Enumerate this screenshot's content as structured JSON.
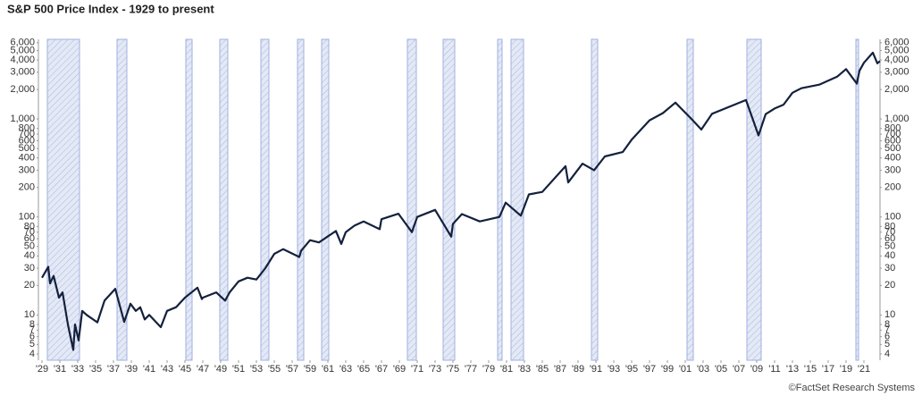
{
  "chart_data": {
    "type": "line",
    "title": "S&P 500 Price Index - 1929 to present",
    "footnote": "©FactSet Research Systems",
    "log_scale": true,
    "color": "#14213d",
    "recession_color": "#c9d3ee",
    "x": [
      1929.0,
      1929.7,
      1929.9,
      1930.3,
      1930.9,
      1931.3,
      1931.9,
      1932.5,
      1932.7,
      1933.1,
      1933.5,
      1934,
      1935.2,
      1936,
      1937.2,
      1938.2,
      1938.9,
      1939.5,
      1940,
      1940.5,
      1941,
      1942.3,
      1943,
      1944,
      1945,
      1946.4,
      1946.9,
      1947,
      1948.5,
      1949.5,
      1950,
      1951,
      1952,
      1953,
      1954,
      1955,
      1956,
      1957.8,
      1958,
      1959,
      1960,
      1961.9,
      1962.5,
      1963,
      1964,
      1965,
      1966.8,
      1967,
      1968.9,
      1970.4,
      1971,
      1973,
      1974.8,
      1975,
      1976,
      1978,
      1980.2,
      1980.9,
      1982.6,
      1983.5,
      1985,
      1987.6,
      1987.9,
      1989.5,
      1990.8,
      1992,
      1994,
      1995,
      1997,
      1998.5,
      1999.9,
      2001.7,
      2002.8,
      2004,
      2007.8,
      2009.2,
      2010,
      2011,
      2012,
      2013,
      2014,
      2016,
      2018,
      2019,
      2020.2,
      2020.5,
      2021,
      2022,
      2022.5,
      2022.8
    ],
    "values": [
      24,
      31,
      21,
      25,
      15,
      17,
      8,
      4.4,
      8,
      5.5,
      11,
      10,
      8.4,
      14,
      18.5,
      8.5,
      13,
      11,
      12,
      9,
      10,
      7.5,
      11,
      12,
      15,
      19,
      14.5,
      15,
      17,
      14,
      17,
      22,
      24,
      23,
      30,
      42,
      47,
      39,
      45,
      58,
      55,
      72,
      53,
      70,
      82,
      90,
      75,
      95,
      108,
      70,
      100,
      118,
      63,
      85,
      107,
      90,
      100,
      140,
      103,
      170,
      180,
      330,
      225,
      350,
      300,
      415,
      460,
      615,
      970,
      1150,
      1470,
      1000,
      780,
      1130,
      1560,
      680,
      1120,
      1280,
      1400,
      1850,
      2060,
      2240,
      2700,
      3230,
      2300,
      3100,
      3750,
      4750,
      3700,
      3900
    ],
    "recessions": [
      [
        1929.6,
        1933.2
      ],
      [
        1937.4,
        1938.5
      ],
      [
        1945.1,
        1945.8
      ],
      [
        1948.9,
        1949.8
      ],
      [
        1953.5,
        1954.4
      ],
      [
        1957.6,
        1958.3
      ],
      [
        1960.3,
        1961.1
      ],
      [
        1969.9,
        1970.9
      ],
      [
        1973.9,
        1975.2
      ],
      [
        1980.0,
        1980.5
      ],
      [
        1981.5,
        1982.9
      ],
      [
        1990.5,
        1991.2
      ],
      [
        2001.2,
        2001.9
      ],
      [
        2007.9,
        2009.5
      ],
      [
        2020.1,
        2020.4
      ]
    ],
    "xlim": [
      1928.6,
      2022.8
    ],
    "xticks": [
      {
        "value": 1929,
        "label": "'29"
      },
      {
        "value": 1931,
        "label": "'31"
      },
      {
        "value": 1933,
        "label": "'33"
      },
      {
        "value": 1935,
        "label": "'35"
      },
      {
        "value": 1937,
        "label": "'37"
      },
      {
        "value": 1939,
        "label": "'39"
      },
      {
        "value": 1941,
        "label": "'41"
      },
      {
        "value": 1943,
        "label": "'43"
      },
      {
        "value": 1945,
        "label": "'45"
      },
      {
        "value": 1947,
        "label": "'47"
      },
      {
        "value": 1949,
        "label": "'49"
      },
      {
        "value": 1951,
        "label": "'51"
      },
      {
        "value": 1953,
        "label": "'53"
      },
      {
        "value": 1955,
        "label": "'55"
      },
      {
        "value": 1957,
        "label": "'57"
      },
      {
        "value": 1959,
        "label": "'59"
      },
      {
        "value": 1961,
        "label": "'61"
      },
      {
        "value": 1963,
        "label": "'63"
      },
      {
        "value": 1965,
        "label": "'65"
      },
      {
        "value": 1967,
        "label": "'67"
      },
      {
        "value": 1969,
        "label": "'69"
      },
      {
        "value": 1971,
        "label": "'71"
      },
      {
        "value": 1973,
        "label": "'73"
      },
      {
        "value": 1975,
        "label": "'75"
      },
      {
        "value": 1977,
        "label": "'77"
      },
      {
        "value": 1979,
        "label": "'79"
      },
      {
        "value": 1981,
        "label": "'81"
      },
      {
        "value": 1983,
        "label": "'83"
      },
      {
        "value": 1985,
        "label": "'85"
      },
      {
        "value": 1987,
        "label": "'87"
      },
      {
        "value": 1989,
        "label": "'89"
      },
      {
        "value": 1991,
        "label": "'91"
      },
      {
        "value": 1993,
        "label": "'93"
      },
      {
        "value": 1995,
        "label": "'95"
      },
      {
        "value": 1997,
        "label": "'97"
      },
      {
        "value": 1999,
        "label": "'99"
      },
      {
        "value": 2001,
        "label": "'01"
      },
      {
        "value": 2003,
        "label": "'03"
      },
      {
        "value": 2005,
        "label": "'05"
      },
      {
        "value": 2007,
        "label": "'07"
      },
      {
        "value": 2009,
        "label": "'09"
      },
      {
        "value": 2011,
        "label": "'11"
      },
      {
        "value": 2013,
        "label": "'13"
      },
      {
        "value": 2015,
        "label": "'15"
      },
      {
        "value": 2017,
        "label": "'17"
      },
      {
        "value": 2019,
        "label": "'19"
      },
      {
        "value": 2021,
        "label": "'21"
      }
    ],
    "ylim": [
      3.45,
      6500
    ],
    "yticks": [
      4,
      5,
      6,
      7,
      8,
      10,
      20,
      30,
      40,
      50,
      60,
      70,
      80,
      100,
      200,
      300,
      400,
      500,
      600,
      700,
      800,
      {
        "value": 1000,
        "label": "1,000"
      },
      {
        "value": 2000,
        "label": "2,000"
      },
      {
        "value": 3000,
        "label": "3,000"
      },
      {
        "value": 4000,
        "label": "4,000"
      },
      {
        "value": 5000,
        "label": "5,000"
      },
      {
        "value": 6000,
        "label": "6,000"
      }
    ]
  }
}
